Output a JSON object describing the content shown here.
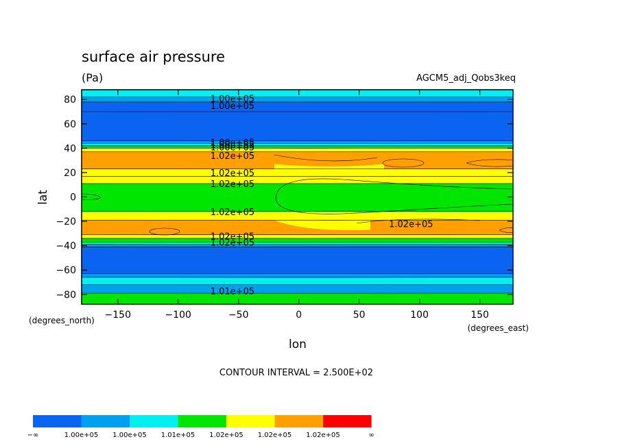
{
  "chart_data": {
    "type": "heatmap",
    "title": "surface air pressure",
    "subtitle": "(Pa)",
    "run_label": "AGCM5_adj_Qobs3keq",
    "xlabel": "lon",
    "ylabel": "lat",
    "x_units": "(degrees_east)",
    "y_units": "(degrees_north)",
    "xlim": [
      -180,
      177.5
    ],
    "ylim": [
      -88,
      88
    ],
    "x_ticks": [
      -150,
      -100,
      -50,
      0,
      50,
      100,
      150
    ],
    "x_tick_labels": [
      "−150",
      "−100",
      "−50",
      "0",
      "50",
      "100",
      "150"
    ],
    "y_ticks": [
      80,
      60,
      40,
      20,
      0,
      -20,
      -40,
      -60,
      -80
    ],
    "y_tick_labels": [
      "80",
      "60",
      "40",
      "20",
      "0",
      "−20",
      "−40",
      "−60",
      "−80"
    ],
    "footer": "CONTOUR INTERVAL = 2.500E+02",
    "contour_labels": [
      "1.00e+05",
      "1.00e+05",
      "1.00e+05",
      "1.00e+05",
      "1.00e+05",
      "1.01e+05",
      "1.02e+05",
      "1.02e+05",
      "1.02e+05",
      "1.02e+05",
      "1.02e+05",
      "1.02e+05",
      "1.02e+05"
    ],
    "legend": {
      "placement": "bottom-left",
      "colors": [
        "#0a64f0",
        "#00a0f0",
        "#00f0f0",
        "#00e600",
        "#ffff00",
        "#ffa000",
        "#ff0000"
      ],
      "labels": [
        "−∞",
        "1.00e+05",
        "1.00e+05",
        "1.01e+05",
        "1.02e+05",
        "1.02e+05",
        "1.02e+05",
        "∞"
      ]
    },
    "bands": [
      {
        "lat_min": 82,
        "lat_max": 88,
        "level": 2
      },
      {
        "lat_min": 78,
        "lat_max": 82,
        "level": 1
      },
      {
        "lat_min": 46,
        "lat_max": 70,
        "level": 0
      },
      {
        "lat_min": 44,
        "lat_max": 46,
        "level": 1
      },
      {
        "lat_min": 42,
        "lat_max": 44,
        "level": 2
      },
      {
        "lat_min": 40,
        "lat_max": 42,
        "level": 3
      },
      {
        "lat_min": 37,
        "lat_max": 40,
        "level": 4
      },
      {
        "lat_min": 23,
        "lat_max": 37,
        "level": 5
      },
      {
        "lat_min": 17,
        "lat_max": 23,
        "level": 4
      },
      {
        "lat_min": 11,
        "lat_max": 17,
        "level": 4
      },
      {
        "lat_min": -12,
        "lat_max": 11,
        "level": 3
      },
      {
        "lat_min": -19,
        "lat_max": -12,
        "level": 4
      },
      {
        "lat_min": -31,
        "lat_max": -19,
        "level": 5
      },
      {
        "lat_min": -34,
        "lat_max": -31,
        "level": 4
      },
      {
        "lat_min": -37,
        "lat_max": -34,
        "level": 3
      },
      {
        "lat_min": -39,
        "lat_max": -37,
        "level": 2
      },
      {
        "lat_min": -41,
        "lat_max": -39,
        "level": 1
      },
      {
        "lat_min": -63,
        "lat_max": -41,
        "level": 0
      },
      {
        "lat_min": -66,
        "lat_max": -63,
        "level": 1
      },
      {
        "lat_min": -72,
        "lat_max": -66,
        "level": 2
      },
      {
        "lat_min": -79,
        "lat_max": -72,
        "level": 1
      },
      {
        "lat_min": -88,
        "lat_max": -79,
        "level": 3
      }
    ]
  }
}
